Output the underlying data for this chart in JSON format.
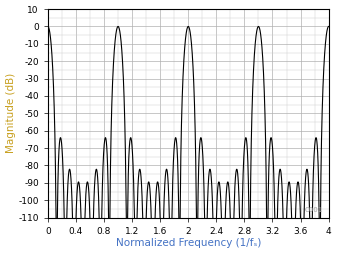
{
  "title": "",
  "xlabel": "Normalized Frequency (1/fₛ)",
  "ylabel": "Magnitude (dB)",
  "xlim": [
    0,
    4
  ],
  "ylim": [
    -110,
    10
  ],
  "xticks": [
    0,
    0.4,
    0.8,
    1.2,
    1.6,
    2,
    2.4,
    2.8,
    3.2,
    3.6,
    4
  ],
  "yticks": [
    10,
    0,
    -10,
    -20,
    -30,
    -40,
    -50,
    -60,
    -70,
    -80,
    -90,
    -100,
    -110
  ],
  "xlabel_color": "#4472c4",
  "ylabel_color": "#c8a020",
  "curve_color": "#000000",
  "bg_color": "#ffffff",
  "grid_color": "#b0b0b0b0",
  "watermark": "C001"
}
